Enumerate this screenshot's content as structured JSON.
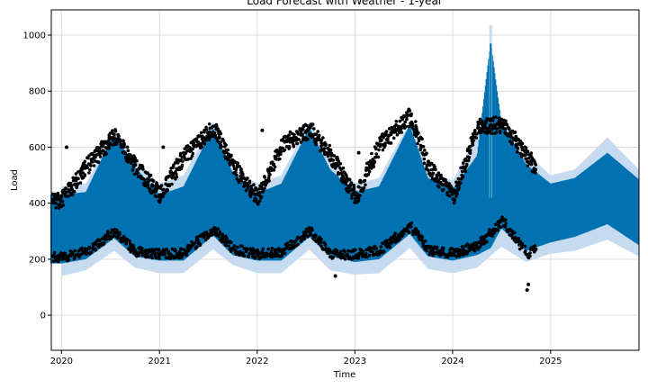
{
  "chart_data": {
    "type": "line",
    "title": "Load Forecast with Weather - 1-year",
    "xlabel": "Time",
    "ylabel": "Load",
    "x_range": [
      "2019-11-24",
      "2025-11-27"
    ],
    "ylim": [
      -125,
      1090
    ],
    "grid": true,
    "x_ticks": [
      "2020",
      "2021",
      "2022",
      "2023",
      "2024",
      "2025"
    ],
    "y_ticks": [
      0,
      200,
      400,
      600,
      800,
      1000
    ],
    "series": [
      {
        "role": "forecast-uncertainty-band",
        "color": "#c6dbef",
        "x": [
          "2020-01-01",
          "2020-04-01",
          "2020-07-15",
          "2020-10-01",
          "2021-01-01",
          "2021-04-01",
          "2021-07-20",
          "2021-10-01",
          "2022-01-01",
          "2022-04-01",
          "2022-07-15",
          "2022-10-01",
          "2023-01-01",
          "2023-04-01",
          "2023-07-25",
          "2023-10-01",
          "2024-01-01",
          "2024-04-01",
          "2024-07-01",
          "2024-10-01",
          "2025-01-01",
          "2025-04-01",
          "2025-08-01",
          "2025-11-27"
        ],
        "lower": [
          140,
          160,
          230,
          170,
          150,
          150,
          235,
          180,
          150,
          150,
          235,
          160,
          145,
          150,
          240,
          165,
          150,
          170,
          245,
          190,
          220,
          230,
          270,
          210
        ],
        "upper": [
          460,
          470,
          650,
          560,
          470,
          500,
          690,
          530,
          470,
          500,
          690,
          560,
          470,
          490,
          690,
          520,
          480,
          640,
          710,
          580,
          500,
          520,
          635,
          520
        ]
      },
      {
        "role": "forecast",
        "color": "#0072b2",
        "x": [
          "2020-01-01",
          "2020-04-01",
          "2020-07-15",
          "2020-10-01",
          "2021-01-01",
          "2021-04-01",
          "2021-07-20",
          "2021-10-01",
          "2022-01-01",
          "2022-04-01",
          "2022-07-15",
          "2022-10-01",
          "2023-01-01",
          "2023-04-01",
          "2023-07-25",
          "2023-10-01",
          "2024-01-01",
          "2024-04-01",
          "2024-05-22",
          "2024-07-01",
          "2024-10-01",
          "2025-01-01",
          "2025-04-01",
          "2025-08-01",
          "2025-11-27"
        ],
        "lower": [
          195,
          210,
          285,
          220,
          205,
          205,
          295,
          225,
          205,
          205,
          290,
          220,
          200,
          210,
          300,
          220,
          205,
          225,
          250,
          320,
          240,
          270,
          290,
          335,
          260
        ],
        "upper": [
          420,
          430,
          640,
          520,
          420,
          450,
          660,
          500,
          425,
          460,
          660,
          510,
          430,
          450,
          670,
          480,
          440,
          560,
          970,
          680,
          530,
          460,
          480,
          570,
          475
        ]
      },
      {
        "role": "observed",
        "color": "#000000",
        "x": [
          "2020-01-01",
          "2020-04-01",
          "2020-07-15",
          "2020-10-01",
          "2021-01-01",
          "2021-04-01",
          "2021-07-20",
          "2021-10-01",
          "2022-01-01",
          "2022-04-01",
          "2022-07-15",
          "2022-10-01",
          "2023-01-01",
          "2023-04-01",
          "2023-07-25",
          "2023-10-01",
          "2024-01-01",
          "2024-04-01",
          "2024-07-01",
          "2024-10-01",
          "2024-11-05"
        ],
        "lower": [
          190,
          210,
          280,
          210,
          200,
          205,
          290,
          220,
          200,
          210,
          285,
          200,
          200,
          215,
          300,
          215,
          205,
          230,
          320,
          200,
          220
        ],
        "upper": [
          440,
          560,
          670,
          560,
          460,
          600,
          700,
          560,
          450,
          640,
          690,
          600,
          450,
          640,
          740,
          560,
          450,
          700,
          710,
          600,
          550
        ]
      }
    ],
    "annotations": {
      "spike": {
        "x": "2024-05-22",
        "y": 970
      },
      "sparse_outliers": [
        {
          "x": "2022-10-20",
          "y": 140
        },
        {
          "x": "2024-10-05",
          "y": 90
        },
        {
          "x": "2024-10-10",
          "y": 110
        },
        {
          "x": "2020-01-20",
          "y": 600
        },
        {
          "x": "2021-01-15",
          "y": 600
        },
        {
          "x": "2022-01-20",
          "y": 660
        },
        {
          "x": "2023-01-15",
          "y": 580
        }
      ]
    }
  }
}
